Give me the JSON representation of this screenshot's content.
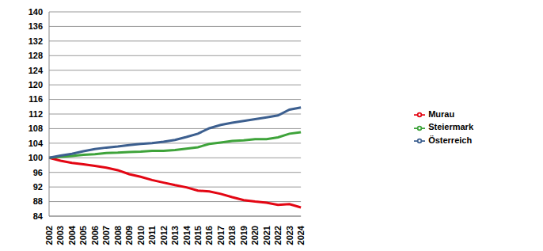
{
  "chart_data": {
    "type": "line",
    "categories": [
      "2002",
      "2003",
      "2004",
      "2005",
      "2006",
      "2007",
      "2008",
      "2009",
      "2010",
      "2011",
      "2012",
      "2013",
      "2014",
      "2015",
      "2016",
      "2017",
      "2018",
      "2019",
      "2020",
      "2021",
      "2022",
      "2023",
      "2024"
    ],
    "series": [
      {
        "name": "Murau",
        "color": "#e30613",
        "values": [
          100,
          99.2,
          98.6,
          98.2,
          97.8,
          97.3,
          96.6,
          95.5,
          94.8,
          93.9,
          93.2,
          92.5,
          91.9,
          91.0,
          90.8,
          90.1,
          89.2,
          88.4,
          88.0,
          87.7,
          87.1,
          87.3,
          86.4
        ]
      },
      {
        "name": "Steiermark",
        "color": "#3ea33a",
        "values": [
          100,
          100.3,
          100.5,
          100.8,
          101.0,
          101.3,
          101.4,
          101.6,
          101.7,
          101.9,
          101.9,
          102.1,
          102.5,
          102.9,
          103.8,
          104.2,
          104.6,
          104.8,
          105.1,
          105.1,
          105.6,
          106.6,
          107.0
        ]
      },
      {
        "name": "Österreich",
        "color": "#3c5f8f",
        "values": [
          100,
          100.6,
          101.1,
          101.8,
          102.4,
          102.8,
          103.1,
          103.5,
          103.8,
          104.0,
          104.4,
          104.9,
          105.7,
          106.6,
          108.1,
          109.0,
          109.6,
          110.1,
          110.6,
          111.1,
          111.6,
          113.2,
          113.8
        ]
      }
    ],
    "ylim": [
      84,
      140
    ],
    "yticks": [
      84,
      88,
      92,
      96,
      100,
      104,
      108,
      112,
      116,
      120,
      124,
      128,
      132,
      136,
      140
    ],
    "grid": true,
    "legend": "right"
  }
}
